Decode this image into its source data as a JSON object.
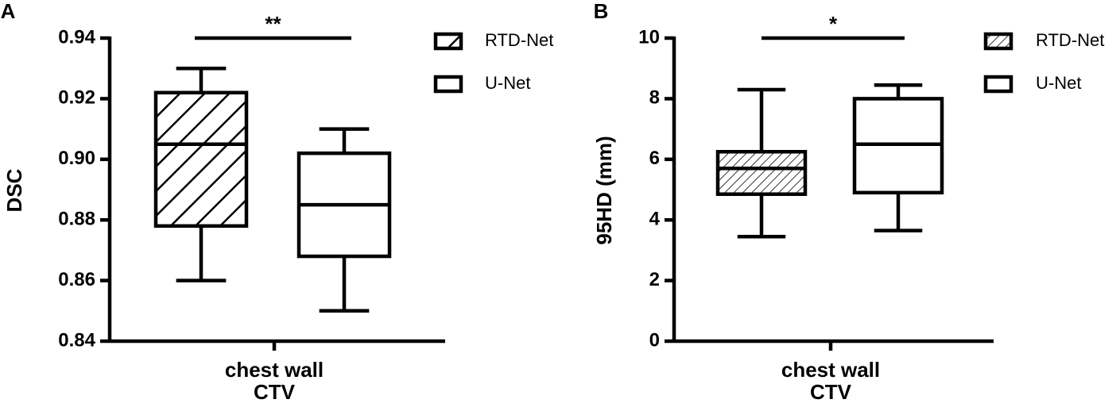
{
  "chart_data": [
    {
      "type": "box",
      "panel": "A",
      "ylabel": "DSC",
      "categories": [
        [
          "chest wall",
          "CTV"
        ]
      ],
      "ylim": [
        0.84,
        0.94
      ],
      "yticks": [
        0.84,
        0.86,
        0.88,
        {
          "value": 0.9,
          "label": "0.90"
        },
        0.92,
        0.94
      ],
      "annotation": "**",
      "series": [
        {
          "name": "RTD-Net",
          "color": "#ffffff",
          "hatch": "diagonal",
          "values": [
            {
              "min": 0.86,
              "q1": 0.878,
              "median": 0.905,
              "q3": 0.922,
              "max": 0.93
            }
          ]
        },
        {
          "name": "U-Net",
          "color": "#ffffff",
          "hatch": "none",
          "values": [
            {
              "min": 0.85,
              "q1": 0.868,
              "median": 0.885,
              "q3": 0.902,
              "max": 0.91
            }
          ]
        }
      ]
    },
    {
      "type": "box",
      "panel": "B",
      "ylabel": "95HD (mm)",
      "categories": [
        [
          "chest wall",
          "CTV"
        ]
      ],
      "ylim": [
        0,
        10
      ],
      "yticks": [
        0,
        2,
        4,
        6,
        8,
        10
      ],
      "annotation": "*",
      "series": [
        {
          "name": "RTD-Net",
          "color": "#ffffff",
          "hatch": "diagonal",
          "values": [
            {
              "min": 3.45,
              "q1": 4.85,
              "median": 5.7,
              "q3": 6.25,
              "max": 8.3
            }
          ]
        },
        {
          "name": "U-Net",
          "color": "#ffffff",
          "hatch": "none",
          "values": [
            {
              "min": 3.65,
              "q1": 4.9,
              "median": 6.5,
              "q3": 8.0,
              "max": 8.45
            }
          ]
        }
      ]
    }
  ]
}
